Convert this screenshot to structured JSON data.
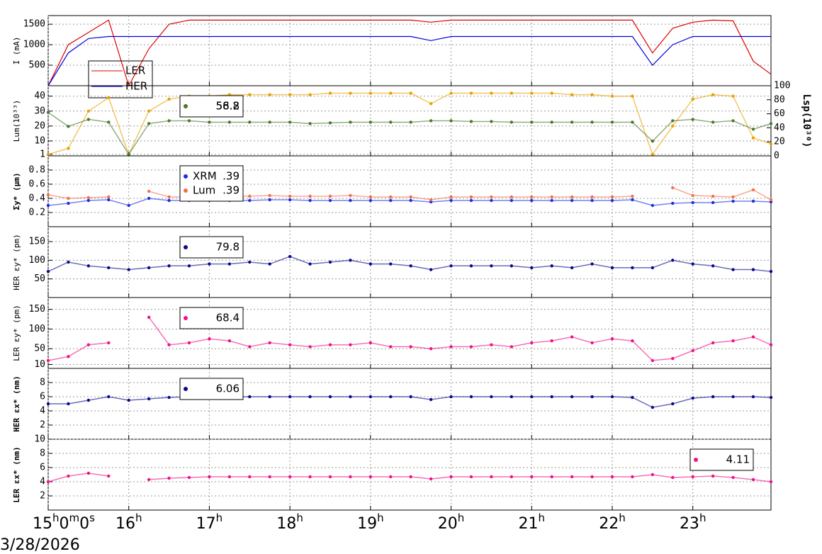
{
  "footer": "3/28/2026",
  "chart_data": [
    {
      "type": "line",
      "ylabel": "I (mA)",
      "legend": "lower left",
      "x": [
        15,
        15.25,
        15.5,
        15.75,
        16,
        16.25,
        16.5,
        16.75,
        17,
        17.25,
        17.5,
        17.75,
        18,
        18.25,
        18.5,
        18.75,
        19,
        19.25,
        19.5,
        19.75,
        20,
        20.25,
        20.5,
        20.75,
        21,
        21.25,
        21.5,
        21.75,
        22,
        22.25,
        22.5,
        22.75,
        23,
        23.25,
        23.5,
        23.75,
        23.97
      ],
      "xlim": [
        15,
        23.97
      ],
      "xticks": [
        15,
        16,
        17,
        18,
        19,
        20,
        21,
        22,
        23
      ],
      "ylim": [
        0,
        1710
      ],
      "yticks": [
        500,
        1000,
        1500
      ],
      "series": [
        {
          "name": "LER",
          "color": "#e00000",
          "values": [
            0,
            1000,
            1300,
            1600,
            0,
            900,
            1500,
            1600,
            1600,
            1600,
            1600,
            1600,
            1600,
            1600,
            1600,
            1600,
            1600,
            1600,
            1600,
            1550,
            1600,
            1600,
            1600,
            1600,
            1600,
            1600,
            1600,
            1600,
            1600,
            1600,
            800,
            1400,
            1550,
            1600,
            1580,
            600,
            280
          ]
        },
        {
          "name": "HER",
          "color": "#0000dd",
          "values": [
            0,
            800,
            1150,
            1200,
            1200,
            1200,
            1200,
            1200,
            1200,
            1200,
            1200,
            1200,
            1200,
            1200,
            1200,
            1200,
            1200,
            1200,
            1200,
            1100,
            1200,
            1200,
            1200,
            1200,
            1200,
            1200,
            1200,
            1200,
            1200,
            1200,
            500,
            1000,
            1200,
            1200,
            1200,
            1200,
            1200
          ]
        }
      ]
    },
    {
      "type": "scatter",
      "ylabel": "Lum(10³³)",
      "y2label": "Lsp(10³⁰)",
      "legend": "upper left",
      "x": [
        15,
        15.25,
        15.5,
        15.75,
        16,
        16.25,
        16.5,
        16.75,
        17,
        17.25,
        17.5,
        17.75,
        18,
        18.25,
        18.5,
        18.75,
        19,
        19.25,
        19.5,
        19.75,
        20,
        20.25,
        20.5,
        20.75,
        21,
        21.25,
        21.5,
        21.75,
        22,
        22.25,
        22.5,
        22.75,
        23,
        23.25,
        23.5,
        23.75,
        23.97
      ],
      "xlim": [
        15,
        23.97
      ],
      "xticks": [
        15,
        16,
        17,
        18,
        19,
        20,
        21,
        22,
        23
      ],
      "ylim": [
        0,
        47
      ],
      "yticks": [
        1,
        10,
        20,
        30,
        40
      ],
      "y2lim": [
        0,
        100
      ],
      "y2ticks": [
        0,
        20,
        40,
        60,
        80,
        100
      ],
      "series": [
        {
          "color": "#e8a200",
          "readout": "56.2",
          "values": [
            1,
            5,
            30,
            39,
            1,
            30,
            38,
            40,
            40,
            41,
            41,
            41,
            41,
            41,
            42,
            42,
            42,
            42,
            42,
            35,
            42,
            42,
            42,
            42,
            42,
            42,
            41,
            41,
            40,
            40,
            1,
            20,
            38,
            41,
            40,
            12,
            8
          ]
        },
        {
          "color": "#4a7a2c",
          "readout": "58.8",
          "axis": "y2",
          "values": [
            62,
            42,
            52,
            48,
            2,
            46,
            50,
            50,
            48,
            48,
            48,
            48,
            48,
            46,
            47,
            48,
            48,
            48,
            48,
            50,
            50,
            49,
            49,
            48,
            48,
            48,
            48,
            48,
            48,
            48,
            21,
            50,
            52,
            48,
            50,
            38,
            46
          ]
        }
      ]
    },
    {
      "type": "scatter",
      "ylabel": "Σy* (μm)",
      "legend": "upper left",
      "x": [
        15,
        15.25,
        15.5,
        15.75,
        16,
        16.25,
        16.5,
        16.75,
        17,
        17.25,
        17.5,
        17.75,
        18,
        18.25,
        18.5,
        18.75,
        19,
        19.25,
        19.5,
        19.75,
        20,
        20.25,
        20.5,
        20.75,
        21,
        21.25,
        21.5,
        21.75,
        22,
        22.25,
        22.5,
        22.75,
        23,
        23.25,
        23.5,
        23.75,
        23.97
      ],
      "xlim": [
        15,
        23.97
      ],
      "xticks": [
        15,
        16,
        17,
        18,
        19,
        20,
        21,
        22,
        23
      ],
      "ylim": [
        0,
        1
      ],
      "yticks": [
        0.2,
        0.4,
        0.6,
        0.8
      ],
      "series": [
        {
          "name": "XRM",
          "readout": ".39",
          "color": "#1a2ee0",
          "values": [
            0.3,
            0.33,
            0.37,
            0.38,
            0.3,
            0.4,
            0.37,
            0.37,
            0.37,
            0.37,
            0.37,
            0.38,
            0.38,
            0.37,
            0.37,
            0.37,
            0.37,
            0.37,
            0.37,
            0.35,
            0.37,
            0.37,
            0.37,
            0.37,
            0.37,
            0.37,
            0.37,
            0.37,
            0.37,
            0.38,
            0.3,
            0.33,
            0.34,
            0.34,
            0.36,
            0.36,
            0.35
          ]
        },
        {
          "name": "Lum",
          "readout": ".39",
          "color": "#f07050",
          "values": [
            0.45,
            0.4,
            0.41,
            0.42,
            null,
            0.5,
            0.42,
            0.42,
            0.43,
            0.43,
            0.43,
            0.44,
            0.43,
            0.43,
            0.43,
            0.44,
            0.42,
            0.42,
            0.42,
            0.38,
            0.42,
            0.42,
            0.42,
            0.42,
            0.42,
            0.42,
            0.42,
            0.42,
            0.42,
            0.43,
            null,
            0.55,
            0.44,
            0.43,
            0.42,
            0.52,
            0.38
          ]
        }
      ]
    },
    {
      "type": "scatter",
      "ylabel": "HER εy* (pm)",
      "legend": "upper left",
      "x": [
        15,
        15.25,
        15.5,
        15.75,
        16,
        16.25,
        16.5,
        16.75,
        17,
        17.25,
        17.5,
        17.75,
        18,
        18.25,
        18.5,
        18.75,
        19,
        19.25,
        19.5,
        19.75,
        20,
        20.25,
        20.5,
        20.75,
        21,
        21.25,
        21.5,
        21.75,
        22,
        22.25,
        22.5,
        22.75,
        23,
        23.25,
        23.5,
        23.75,
        23.97
      ],
      "xlim": [
        15,
        23.97
      ],
      "xticks": [
        15,
        16,
        17,
        18,
        19,
        20,
        21,
        22,
        23
      ],
      "ylim": [
        0,
        190
      ],
      "yticks": [
        50,
        100,
        150
      ],
      "series": [
        {
          "readout": "79.8",
          "color": "#0a0a8a",
          "values": [
            70,
            95,
            85,
            80,
            75,
            80,
            85,
            85,
            90,
            90,
            95,
            90,
            110,
            90,
            95,
            100,
            90,
            90,
            85,
            75,
            85,
            85,
            85,
            85,
            80,
            85,
            80,
            90,
            80,
            80,
            80,
            100,
            90,
            85,
            75,
            75,
            70
          ]
        }
      ]
    },
    {
      "type": "scatter",
      "ylabel": "LER εy* (pm)",
      "legend": "upper left",
      "x": [
        15,
        15.25,
        15.5,
        15.75,
        16,
        16.25,
        16.5,
        16.75,
        17,
        17.25,
        17.5,
        17.75,
        18,
        18.25,
        18.5,
        18.75,
        19,
        19.25,
        19.5,
        19.75,
        20,
        20.25,
        20.5,
        20.75,
        21,
        21.25,
        21.5,
        21.75,
        22,
        22.25,
        22.5,
        22.75,
        23,
        23.25,
        23.5,
        23.75,
        23.97
      ],
      "xlim": [
        15,
        23.97
      ],
      "xticks": [
        15,
        16,
        17,
        18,
        19,
        20,
        21,
        22,
        23
      ],
      "ylim": [
        0,
        180
      ],
      "yticks": [
        10,
        50,
        100,
        150
      ],
      "series": [
        {
          "readout": "68.4",
          "color": "#f0108a",
          "values": [
            20,
            30,
            60,
            65,
            null,
            130,
            60,
            65,
            75,
            70,
            55,
            65,
            60,
            55,
            60,
            60,
            65,
            55,
            55,
            50,
            55,
            55,
            60,
            55,
            65,
            70,
            80,
            65,
            75,
            70,
            20,
            25,
            45,
            65,
            70,
            80,
            60
          ]
        }
      ]
    },
    {
      "type": "scatter",
      "ylabel": "HER εx* (nm)",
      "legend": "upper left",
      "x": [
        15,
        15.25,
        15.5,
        15.75,
        16,
        16.25,
        16.5,
        16.75,
        17,
        17.25,
        17.5,
        17.75,
        18,
        18.25,
        18.5,
        18.75,
        19,
        19.25,
        19.5,
        19.75,
        20,
        20.25,
        20.5,
        20.75,
        21,
        21.25,
        21.5,
        21.75,
        22,
        22.25,
        22.5,
        22.75,
        23,
        23.25,
        23.5,
        23.75,
        23.97
      ],
      "xlim": [
        15,
        23.97
      ],
      "xticks": [
        15,
        16,
        17,
        18,
        19,
        20,
        21,
        22,
        23
      ],
      "ylim": [
        0,
        10
      ],
      "yticks": [
        2,
        4,
        6,
        8
      ],
      "series": [
        {
          "readout": "6.06",
          "color": "#0a0a8a",
          "values": [
            5,
            5,
            5.5,
            6,
            5.5,
            5.7,
            5.9,
            6,
            6,
            6,
            6,
            6,
            6,
            6,
            6,
            6,
            6,
            6,
            6,
            5.6,
            6,
            6,
            6,
            6,
            6,
            6,
            6,
            6,
            6,
            5.9,
            4.5,
            5,
            5.8,
            6,
            6,
            6,
            5.9
          ]
        }
      ]
    },
    {
      "type": "scatter",
      "ylabel": "LER εx* (nm)",
      "legend": "upper right",
      "x": [
        15,
        15.25,
        15.5,
        15.75,
        16,
        16.25,
        16.5,
        16.75,
        17,
        17.25,
        17.5,
        17.75,
        18,
        18.25,
        18.5,
        18.75,
        19,
        19.25,
        19.5,
        19.75,
        20,
        20.25,
        20.5,
        20.75,
        21,
        21.25,
        21.5,
        21.75,
        22,
        22.25,
        22.5,
        22.75,
        23,
        23.25,
        23.5,
        23.75,
        23.97
      ],
      "xlim": [
        15,
        23.97
      ],
      "xticks": [
        {
          "value": 15,
          "label": "15h0m0s"
        },
        {
          "value": 16,
          "label": "16h"
        },
        {
          "value": 17,
          "label": "17h"
        },
        {
          "value": 18,
          "label": "18h"
        },
        {
          "value": 19,
          "label": "19h"
        },
        {
          "value": 20,
          "label": "20h"
        },
        {
          "value": 21,
          "label": "21h"
        },
        {
          "value": 22,
          "label": "22h"
        },
        {
          "value": 23,
          "label": "23h"
        }
      ],
      "ylim": [
        0,
        10
      ],
      "yticks": [
        2,
        4,
        6,
        8,
        10
      ],
      "series": [
        {
          "readout": "4.11",
          "color": "#f0108a",
          "values": [
            4,
            4.8,
            5.2,
            4.8,
            null,
            4.3,
            4.5,
            4.6,
            4.7,
            4.7,
            4.7,
            4.7,
            4.7,
            4.7,
            4.7,
            4.7,
            4.7,
            4.7,
            4.7,
            4.4,
            4.7,
            4.7,
            4.7,
            4.7,
            4.7,
            4.7,
            4.7,
            4.7,
            4.7,
            4.7,
            5,
            4.6,
            4.7,
            4.8,
            4.6,
            4.3,
            4
          ]
        }
      ]
    }
  ]
}
